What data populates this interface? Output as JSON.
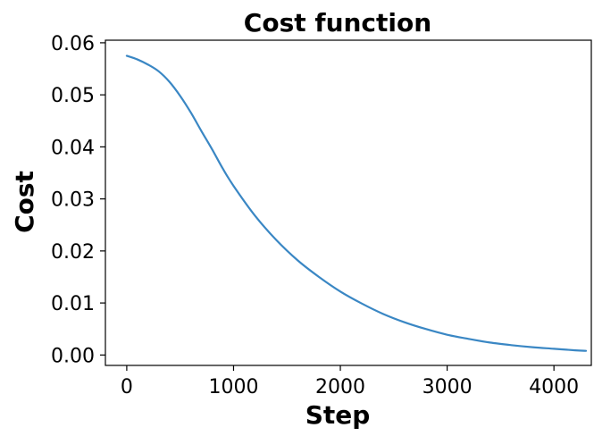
{
  "chart_data": {
    "type": "line",
    "title": "Cost function",
    "xlabel": "Step",
    "ylabel": "Cost",
    "xlim": [
      -200,
      4350
    ],
    "ylim": [
      -0.002,
      0.0605
    ],
    "xticks": [
      0,
      1000,
      2000,
      3000,
      4000
    ],
    "xtick_labels": [
      "0",
      "1000",
      "2000",
      "3000",
      "4000"
    ],
    "yticks": [
      0.0,
      0.01,
      0.02,
      0.03,
      0.04,
      0.05,
      0.06
    ],
    "ytick_labels": [
      "0.00",
      "0.01",
      "0.02",
      "0.03",
      "0.04",
      "0.05",
      "0.06"
    ],
    "grid": false,
    "series": [
      {
        "color": "#3a87c4",
        "x": [
          0,
          100,
          200,
          300,
          400,
          500,
          600,
          700,
          800,
          900,
          1000,
          1200,
          1400,
          1600,
          1800,
          2000,
          2200,
          2400,
          2600,
          2800,
          3000,
          3200,
          3400,
          3600,
          3800,
          4000,
          4200,
          4300
        ],
        "y": [
          0.0575,
          0.0568,
          0.0558,
          0.0545,
          0.0525,
          0.0498,
          0.0466,
          0.043,
          0.0395,
          0.0358,
          0.0325,
          0.0268,
          0.0221,
          0.0182,
          0.015,
          0.0122,
          0.0099,
          0.0079,
          0.0063,
          0.005,
          0.0039,
          0.0031,
          0.0024,
          0.0019,
          0.0015,
          0.0012,
          0.0009,
          0.0008
        ]
      }
    ]
  }
}
